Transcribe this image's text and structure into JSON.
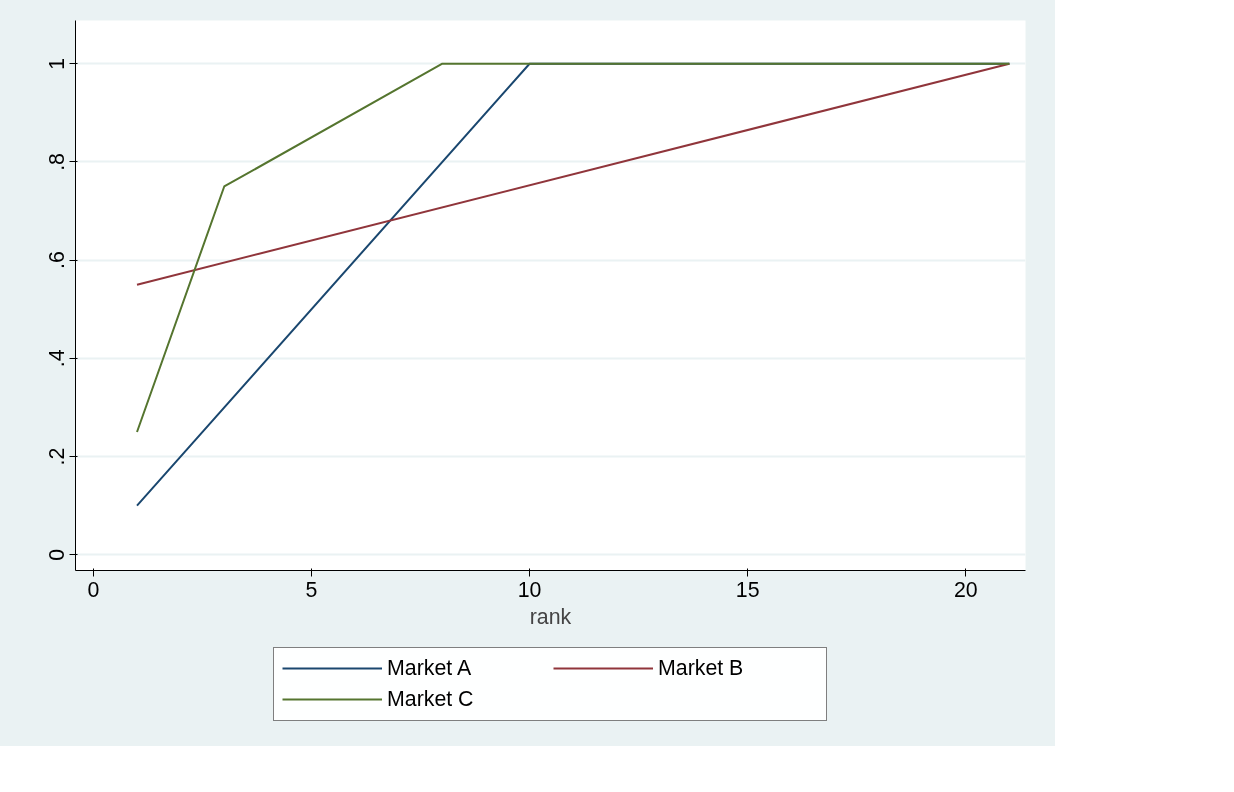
{
  "chart_data": {
    "type": "line",
    "xlabel": "rank",
    "xlim": [
      -0.41,
      21.37
    ],
    "xticks": [
      0,
      5,
      10,
      15,
      20
    ],
    "ylim": [
      -0.032,
      1.088
    ],
    "yticks": [
      {
        "value": 0,
        "label": "0"
      },
      {
        "value": 0.2,
        "label": ".2"
      },
      {
        "value": 0.4,
        "label": ".4"
      },
      {
        "value": 0.6,
        "label": ".6"
      },
      {
        "value": 0.8,
        "label": ".8"
      },
      {
        "value": 1,
        "label": "1"
      }
    ],
    "grid": "y",
    "legend": "bottom",
    "marker": "none",
    "line_style": "solid",
    "series": [
      {
        "name": "Market A",
        "color": "#1a476f",
        "x": [
          1,
          10,
          21
        ],
        "values": [
          0.1,
          1,
          1
        ]
      },
      {
        "name": "Market B",
        "color": "#90353b",
        "x": [
          1,
          21
        ],
        "values": [
          0.55,
          1
        ]
      },
      {
        "name": "Market C",
        "color": "#55752f",
        "x": [
          1,
          3,
          8,
          21
        ],
        "values": [
          0.25,
          0.75,
          1,
          1
        ]
      }
    ]
  }
}
